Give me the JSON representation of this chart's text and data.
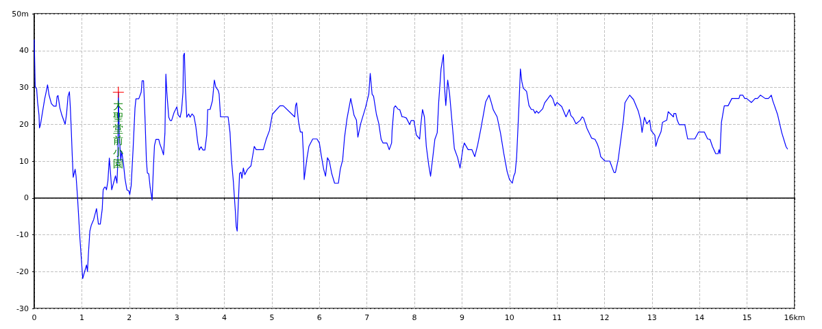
{
  "chart_data": {
    "type": "line",
    "x": [
      0,
      0.01,
      0.02,
      0.05,
      0.07,
      0.1,
      0.11,
      0.13,
      0.17,
      0.22,
      0.25,
      0.28,
      0.31,
      0.36,
      0.41,
      0.46,
      0.48,
      0.5,
      0.54,
      0.58,
      0.65,
      0.68,
      0.71,
      0.74,
      0.76,
      0.78,
      0.8,
      0.82,
      0.86,
      0.88,
      0.91,
      0.96,
      1.0,
      1.02,
      1.06,
      1.1,
      1.12,
      1.14,
      1.17,
      1.2,
      1.25,
      1.31,
      1.35,
      1.39,
      1.43,
      1.45,
      1.48,
      1.5,
      1.52,
      1.55,
      1.58,
      1.61,
      1.63,
      1.68,
      1.71,
      1.74,
      1.76,
      1.77,
      1.79,
      1.82,
      1.84,
      1.88,
      1.91,
      1.95,
      1.99,
      2.01,
      2.04,
      2.08,
      2.12,
      2.14,
      2.2,
      2.25,
      2.27,
      2.3,
      2.33,
      2.36,
      2.38,
      2.41,
      2.44,
      2.48,
      2.51,
      2.53,
      2.56,
      2.62,
      2.64,
      2.69,
      2.72,
      2.75,
      2.77,
      2.79,
      2.83,
      2.86,
      2.89,
      2.94,
      3.0,
      3.03,
      3.07,
      3.1,
      3.13,
      3.14,
      3.16,
      3.18,
      3.21,
      3.25,
      3.28,
      3.32,
      3.36,
      3.4,
      3.44,
      3.47,
      3.51,
      3.55,
      3.59,
      3.63,
      3.65,
      3.7,
      3.75,
      3.79,
      3.82,
      3.87,
      3.89,
      3.92,
      4.08,
      4.12,
      4.15,
      4.19,
      4.23,
      4.25,
      4.27,
      4.3,
      4.32,
      4.35,
      4.37,
      4.4,
      4.43,
      4.49,
      4.56,
      4.63,
      4.67,
      4.82,
      4.88,
      4.95,
      5.01,
      5.17,
      5.24,
      5.48,
      5.5,
      5.52,
      5.56,
      5.6,
      5.64,
      5.67,
      5.68,
      5.74,
      5.78,
      5.86,
      5.95,
      6.0,
      6.04,
      6.09,
      6.13,
      6.17,
      6.21,
      6.26,
      6.32,
      6.4,
      6.44,
      6.49,
      6.53,
      6.58,
      6.66,
      6.73,
      6.78,
      6.81,
      6.87,
      6.97,
      7.04,
      7.07,
      7.11,
      7.14,
      7.2,
      7.25,
      7.3,
      7.34,
      7.42,
      7.47,
      7.52,
      7.53,
      7.57,
      7.6,
      7.66,
      7.69,
      7.74,
      7.77,
      7.83,
      7.9,
      7.93,
      7.99,
      8.04,
      8.11,
      8.13,
      8.17,
      8.21,
      8.25,
      8.3,
      8.34,
      8.38,
      8.43,
      8.48,
      8.51,
      8.56,
      8.61,
      8.63,
      8.66,
      8.7,
      8.74,
      8.79,
      8.84,
      8.91,
      8.96,
      9.02,
      9.05,
      9.13,
      9.21,
      9.27,
      9.33,
      9.4,
      9.5,
      9.57,
      9.62,
      9.66,
      9.74,
      9.81,
      9.88,
      9.95,
      10.0,
      10.06,
      10.09,
      10.12,
      10.15,
      10.2,
      10.23,
      10.26,
      10.29,
      10.36,
      10.41,
      10.46,
      10.5,
      10.54,
      10.57,
      10.61,
      10.7,
      10.74,
      10.81,
      10.86,
      10.91,
      10.96,
      11.0,
      11.1,
      11.19,
      11.26,
      11.29,
      11.34,
      11.4,
      11.49,
      11.53,
      11.56,
      11.63,
      11.73,
      11.8,
      11.85,
      11.89,
      11.92,
      12.01,
      12.11,
      12.2,
      12.23,
      12.29,
      12.35,
      12.4,
      12.43,
      12.47,
      12.53,
      12.61,
      12.71,
      12.76,
      12.79,
      12.84,
      12.89,
      12.95,
      12.98,
      13.06,
      13.08,
      13.12,
      13.19,
      13.22,
      13.31,
      13.34,
      13.45,
      13.46,
      13.5,
      13.53,
      13.57,
      13.69,
      13.75,
      13.9,
      13.98,
      14.1,
      14.17,
      14.22,
      14.27,
      14.34,
      14.39,
      14.41,
      14.43,
      14.46,
      14.52,
      14.6,
      14.68,
      14.83,
      14.85,
      14.91,
      14.95,
      14.99,
      15.09,
      15.17,
      15.22,
      15.28,
      15.38,
      15.45,
      15.51,
      15.54,
      15.64,
      15.73,
      15.82,
      15.85
    ],
    "series": [
      {
        "color": "#0000ff",
        "values": [
          42.9,
          36.7,
          30.2,
          29.6,
          26,
          22.5,
          19,
          19.8,
          23,
          26.9,
          28.7,
          30.7,
          28,
          25.6,
          24.9,
          24.9,
          27.5,
          27.8,
          24.4,
          22.5,
          20,
          22.8,
          27.5,
          28.8,
          24.4,
          18.2,
          11.4,
          5.6,
          7.8,
          5.9,
          0.3,
          -10.8,
          -18.2,
          -21.9,
          -20,
          -18.2,
          -20,
          -15.1,
          -9,
          -7.4,
          -5.9,
          -2.9,
          -7.1,
          -7.1,
          -3.1,
          2.2,
          2.9,
          2.9,
          2.2,
          4.6,
          10.8,
          5.9,
          2.2,
          4.6,
          6,
          4,
          10.2,
          28.7,
          17,
          10.2,
          12.7,
          9,
          5.2,
          2.2,
          1.9,
          0.9,
          3.4,
          13.3,
          24.4,
          26.9,
          26.9,
          28.7,
          31.8,
          31.8,
          21.9,
          10.2,
          6.8,
          6.5,
          2.8,
          -0.6,
          9,
          14.2,
          15.9,
          15.9,
          14.8,
          13,
          11.7,
          17.6,
          33.6,
          28.7,
          21.9,
          21,
          21,
          23.1,
          24.7,
          22.5,
          21.9,
          23.8,
          28.7,
          38.6,
          39.3,
          29.9,
          21.9,
          22.8,
          21.9,
          22.8,
          22.2,
          19.4,
          15.1,
          13,
          13.9,
          13,
          13,
          17.1,
          24,
          24,
          26.4,
          32,
          30.1,
          29.2,
          28.2,
          22,
          22,
          17.7,
          10.3,
          4.4,
          -3.3,
          -7.7,
          -9,
          0.4,
          6.6,
          7,
          5.3,
          8.1,
          6.3,
          7.8,
          8.7,
          14,
          13.1,
          13.1,
          15.9,
          18.3,
          22.7,
          25,
          25,
          22,
          25.1,
          25.8,
          20.8,
          17.9,
          17.9,
          10.3,
          5,
          10.9,
          14,
          16,
          16,
          14.9,
          11.5,
          7.8,
          5.9,
          10.9,
          10,
          6.6,
          4,
          4,
          7.8,
          10.3,
          16.5,
          21.4,
          27,
          22.4,
          21.1,
          16.5,
          20.2,
          24.5,
          28.2,
          33.8,
          28.1,
          27.6,
          22.7,
          20.2,
          15.9,
          14.9,
          14.9,
          13.1,
          14.9,
          18.3,
          24.5,
          25,
          24,
          24,
          22,
          22,
          21.7,
          19.9,
          21,
          21,
          17.1,
          16,
          19.3,
          24,
          22,
          14,
          9,
          5.9,
          10.3,
          15.9,
          17.7,
          25.8,
          35,
          38.9,
          30.7,
          25.1,
          32,
          28.2,
          20.8,
          13.4,
          10.9,
          8.1,
          13.4,
          14.9,
          13.1,
          13.1,
          11.2,
          14.3,
          18.9,
          26.1,
          27.9,
          25.8,
          23.9,
          22,
          17.7,
          12.1,
          7.2,
          5,
          4,
          5.9,
          6.9,
          10.9,
          25.1,
          35,
          31.6,
          29.8,
          28.9,
          25.1,
          24,
          24,
          23,
          23.6,
          23,
          24.2,
          25.8,
          27,
          27.9,
          27,
          25,
          25.9,
          24.8,
          22,
          24,
          22.4,
          21.7,
          20.1,
          21.1,
          22,
          21.7,
          18.9,
          16.2,
          15.9,
          14.6,
          13.1,
          11.2,
          10,
          10,
          6.9,
          6.9,
          10.6,
          16.5,
          21.4,
          25.8,
          26.7,
          27.9,
          26.7,
          23.6,
          21.1,
          17.8,
          21.9,
          20.1,
          21.1,
          18.3,
          17,
          14,
          15.9,
          18,
          20.5,
          21.1,
          23.4,
          22,
          22.9,
          22.9,
          21.1,
          19.9,
          19.9,
          16,
          16,
          17.9,
          17.9,
          16,
          15.9,
          14,
          12,
          12,
          13.1,
          12,
          20.5,
          25,
          25,
          27,
          27,
          27.9,
          27.9,
          27,
          27,
          25.9,
          27,
          27,
          27.9,
          27,
          27,
          27.9,
          26.4,
          22.7,
          17.7,
          13.9,
          13.3
        ]
      }
    ],
    "xlim": [
      0,
      16
    ],
    "xticks": [
      0,
      1,
      2,
      3,
      4,
      5,
      6,
      7,
      8,
      9,
      10,
      11,
      12,
      13,
      14,
      15,
      {
        "value": 16,
        "label": "16km"
      }
    ],
    "ylim": [
      -30,
      50
    ],
    "yticks": [
      -30,
      -20,
      -10,
      0,
      10,
      20,
      30,
      40,
      {
        "value": 50,
        "label": "50m"
      }
    ],
    "grid": true,
    "marker": "none",
    "line_style": "solid",
    "annotations": [
      {
        "text": "大聖堂前小園",
        "x": 1.77,
        "y": 28.7
      }
    ]
  }
}
